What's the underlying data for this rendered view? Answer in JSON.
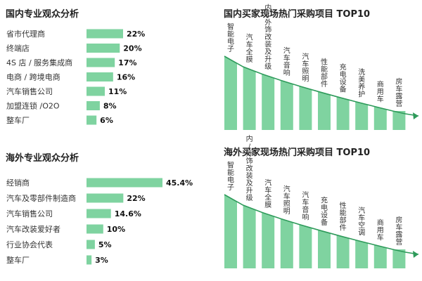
{
  "colors": {
    "bar": "#7fd3a0",
    "arrow": "#2e9a5a",
    "text": "#333333",
    "value_text": "#111111"
  },
  "chart_data": [
    {
      "type": "bar",
      "orientation": "horizontal",
      "title": "国内专业观众分析",
      "categories": [
        "省市代理商",
        "终端店",
        "4S 店 / 服务集成商",
        "电商 / 跨境电商",
        "汽车销售公司",
        "加盟连锁 /O2O",
        "整车厂"
      ],
      "values": [
        22,
        20,
        17,
        16,
        11,
        8,
        6
      ],
      "value_labels": [
        "22%",
        "20%",
        "17%",
        "16%",
        "11%",
        "8%",
        "6%"
      ],
      "unit": "%"
    },
    {
      "type": "bar",
      "orientation": "horizontal",
      "title": "海外专业观众分析",
      "categories": [
        "经销商",
        "汽车及零部件制造商",
        "汽车销售公司",
        "汽车改装爱好者",
        "行业协会代表",
        "整车厂"
      ],
      "values": [
        45.4,
        22,
        14.6,
        10,
        5,
        3
      ],
      "value_labels": [
        "45.4%",
        "22%",
        "14.6%",
        "10%",
        "5%",
        "3%"
      ],
      "unit": "%"
    },
    {
      "type": "bar",
      "orientation": "vertical",
      "title": "国内买家现场热门采购项目 TOP10",
      "categories": [
        "智能电子",
        "汽车全膜",
        "内/外饰改装及升级",
        "汽车音响",
        "汽车照明",
        "性能部件",
        "充电设备",
        "洗美养护",
        "商用车",
        "房车露营"
      ],
      "rank": [
        1,
        2,
        3,
        4,
        5,
        6,
        7,
        8,
        9,
        10
      ]
    },
    {
      "type": "bar",
      "orientation": "vertical",
      "title": "海外买家现场热门采购项目 TOP10",
      "categories": [
        "智能电子",
        "内/外饰改装及升级",
        "汽车全膜",
        "汽车照明",
        "汽车音响",
        "充电设备",
        "性能部件",
        "汽车空调",
        "商用车",
        "房车露营"
      ],
      "rank": [
        1,
        2,
        3,
        4,
        5,
        6,
        7,
        8,
        9,
        10
      ]
    }
  ]
}
